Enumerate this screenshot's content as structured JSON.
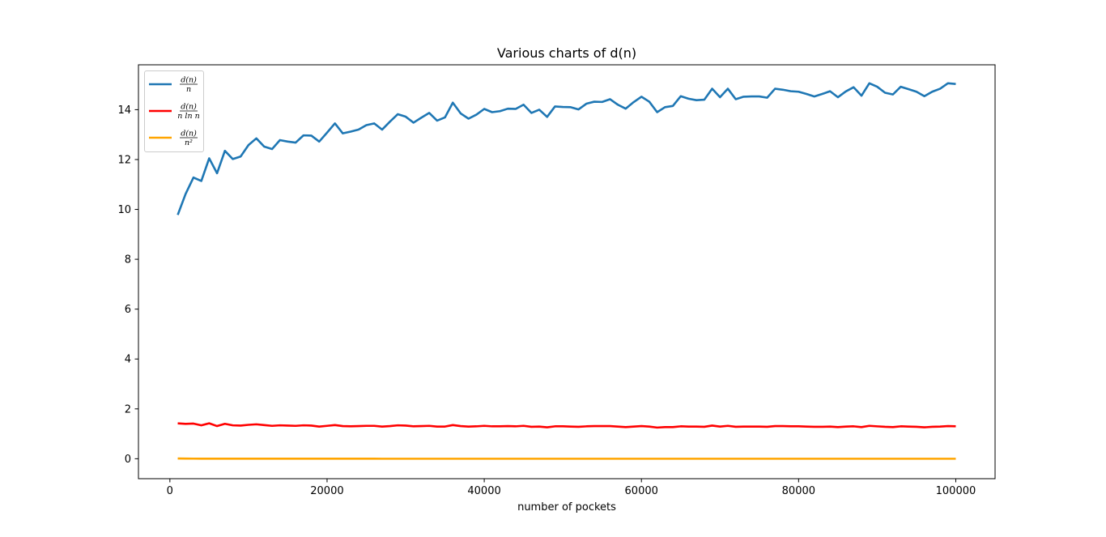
{
  "chart_data": {
    "type": "line",
    "title": "Various charts of d(n)",
    "xlabel": "number of pockets",
    "ylabel": "",
    "xlim": [
      -4000,
      105000
    ],
    "ylim": [
      -0.8,
      15.8
    ],
    "xticks": [
      0,
      20000,
      40000,
      60000,
      80000,
      100000
    ],
    "xtick_labels": [
      "0",
      "20000",
      "40000",
      "60000",
      "80000",
      "100000"
    ],
    "yticks": [
      0,
      2,
      4,
      6,
      8,
      10,
      12,
      14
    ],
    "ytick_labels": [
      "0",
      "2",
      "4",
      "6",
      "8",
      "10",
      "12",
      "14"
    ],
    "grid": false,
    "legend_position": "top-left",
    "x": [
      1000,
      2000,
      3000,
      4000,
      5000,
      6000,
      7000,
      8000,
      9000,
      10000,
      11000,
      12000,
      13000,
      14000,
      15000,
      16000,
      17000,
      18000,
      19000,
      20000,
      21000,
      22000,
      23000,
      24000,
      25000,
      26000,
      27000,
      28000,
      29000,
      30000,
      31000,
      32000,
      33000,
      34000,
      35000,
      36000,
      37000,
      38000,
      39000,
      40000,
      41000,
      42000,
      43000,
      44000,
      45000,
      46000,
      47000,
      48000,
      49000,
      50000,
      51000,
      52000,
      53000,
      54000,
      55000,
      56000,
      57000,
      58000,
      59000,
      60000,
      61000,
      62000,
      63000,
      64000,
      65000,
      66000,
      67000,
      68000,
      69000,
      70000,
      71000,
      72000,
      73000,
      74000,
      75000,
      76000,
      77000,
      78000,
      79000,
      80000,
      81000,
      82000,
      83000,
      84000,
      85000,
      86000,
      87000,
      88000,
      89000,
      90000,
      91000,
      92000,
      93000,
      94000,
      95000,
      96000,
      97000,
      98000,
      99000,
      100000
    ],
    "series": [
      {
        "name": "d(n)/n",
        "color": "#1f77b4",
        "values": [
          9.78,
          10.62,
          11.28,
          11.14,
          12.05,
          11.45,
          12.35,
          12.02,
          12.12,
          12.58,
          12.85,
          12.52,
          12.42,
          12.78,
          12.72,
          12.68,
          12.97,
          12.96,
          12.72,
          13.08,
          13.45,
          13.05,
          13.12,
          13.2,
          13.38,
          13.45,
          13.2,
          13.52,
          13.82,
          13.72,
          13.48,
          13.68,
          13.87,
          13.56,
          13.69,
          14.28,
          13.85,
          13.64,
          13.8,
          14.03,
          13.9,
          13.94,
          14.04,
          14.03,
          14.2,
          13.87,
          14.0,
          13.71,
          14.13,
          14.11,
          14.1,
          14.01,
          14.24,
          14.32,
          14.31,
          14.42,
          14.2,
          14.04,
          14.3,
          14.52,
          14.32,
          13.9,
          14.1,
          14.15,
          14.54,
          14.44,
          14.38,
          14.4,
          14.84,
          14.5,
          14.84,
          14.42,
          14.52,
          14.53,
          14.53,
          14.48,
          14.84,
          14.8,
          14.74,
          14.72,
          14.63,
          14.53,
          14.63,
          14.74,
          14.5,
          14.73,
          14.9,
          14.56,
          15.06,
          14.92,
          14.68,
          14.61,
          14.92,
          14.82,
          14.72,
          14.54,
          14.72,
          14.84,
          15.06,
          15.03
        ]
      },
      {
        "name": "d(n)/(n ln n)",
        "color": "#ff0000",
        "values": [
          1.42,
          1.4,
          1.41,
          1.34,
          1.42,
          1.31,
          1.4,
          1.34,
          1.33,
          1.36,
          1.38,
          1.35,
          1.32,
          1.34,
          1.33,
          1.32,
          1.34,
          1.33,
          1.29,
          1.32,
          1.35,
          1.31,
          1.3,
          1.31,
          1.32,
          1.32,
          1.29,
          1.31,
          1.34,
          1.33,
          1.3,
          1.31,
          1.32,
          1.29,
          1.29,
          1.35,
          1.31,
          1.29,
          1.3,
          1.32,
          1.3,
          1.3,
          1.31,
          1.3,
          1.32,
          1.28,
          1.29,
          1.26,
          1.3,
          1.3,
          1.29,
          1.28,
          1.3,
          1.31,
          1.31,
          1.31,
          1.29,
          1.27,
          1.29,
          1.31,
          1.29,
          1.25,
          1.27,
          1.27,
          1.3,
          1.29,
          1.29,
          1.28,
          1.33,
          1.29,
          1.32,
          1.28,
          1.29,
          1.29,
          1.29,
          1.28,
          1.31,
          1.31,
          1.3,
          1.3,
          1.29,
          1.28,
          1.28,
          1.29,
          1.27,
          1.29,
          1.3,
          1.27,
          1.32,
          1.3,
          1.28,
          1.27,
          1.3,
          1.29,
          1.28,
          1.26,
          1.28,
          1.29,
          1.31,
          1.3
        ]
      },
      {
        "name": "d(n)/n²",
        "color": "#ffa500",
        "values": [
          0.01,
          0.005,
          0.004,
          0.003,
          0.002,
          0.002,
          0.002,
          0.002,
          0.001,
          0.001,
          0.001,
          0.001,
          0.001,
          0.001,
          0.001,
          0.001,
          0.001,
          0.001,
          0.001,
          0.001,
          0.001,
          0.001,
          0.001,
          0.001,
          0.001,
          0.001,
          0.0,
          0.0,
          0.0,
          0.0,
          0.0,
          0.0,
          0.0,
          0.0,
          0.0,
          0.0,
          0.0,
          0.0,
          0.0,
          0.0,
          0.0,
          0.0,
          0.0,
          0.0,
          0.0,
          0.0,
          0.0,
          0.0,
          0.0,
          0.0,
          0.0,
          0.0,
          0.0,
          0.0,
          0.0,
          0.0,
          0.0,
          0.0,
          0.0,
          0.0,
          0.0,
          0.0,
          0.0,
          0.0,
          0.0,
          0.0,
          0.0,
          0.0,
          0.0,
          0.0,
          0.0,
          0.0,
          0.0,
          0.0,
          0.0,
          0.0,
          0.0,
          0.0,
          0.0,
          0.0,
          0.0,
          0.0,
          0.0,
          0.0,
          0.0,
          0.0,
          0.0,
          0.0,
          0.0,
          0.0,
          0.0,
          0.0,
          0.0,
          0.0,
          0.0,
          0.0,
          0.0,
          0.0,
          0.0,
          0.0
        ]
      }
    ]
  },
  "legend": [
    {
      "num": "d(n)",
      "den": "n",
      "color": "#1f77b4"
    },
    {
      "num": "d(n)",
      "den": "n ln n",
      "color": "#ff0000"
    },
    {
      "num": "d(n)",
      "den": "n²",
      "color": "#ffa500"
    }
  ]
}
